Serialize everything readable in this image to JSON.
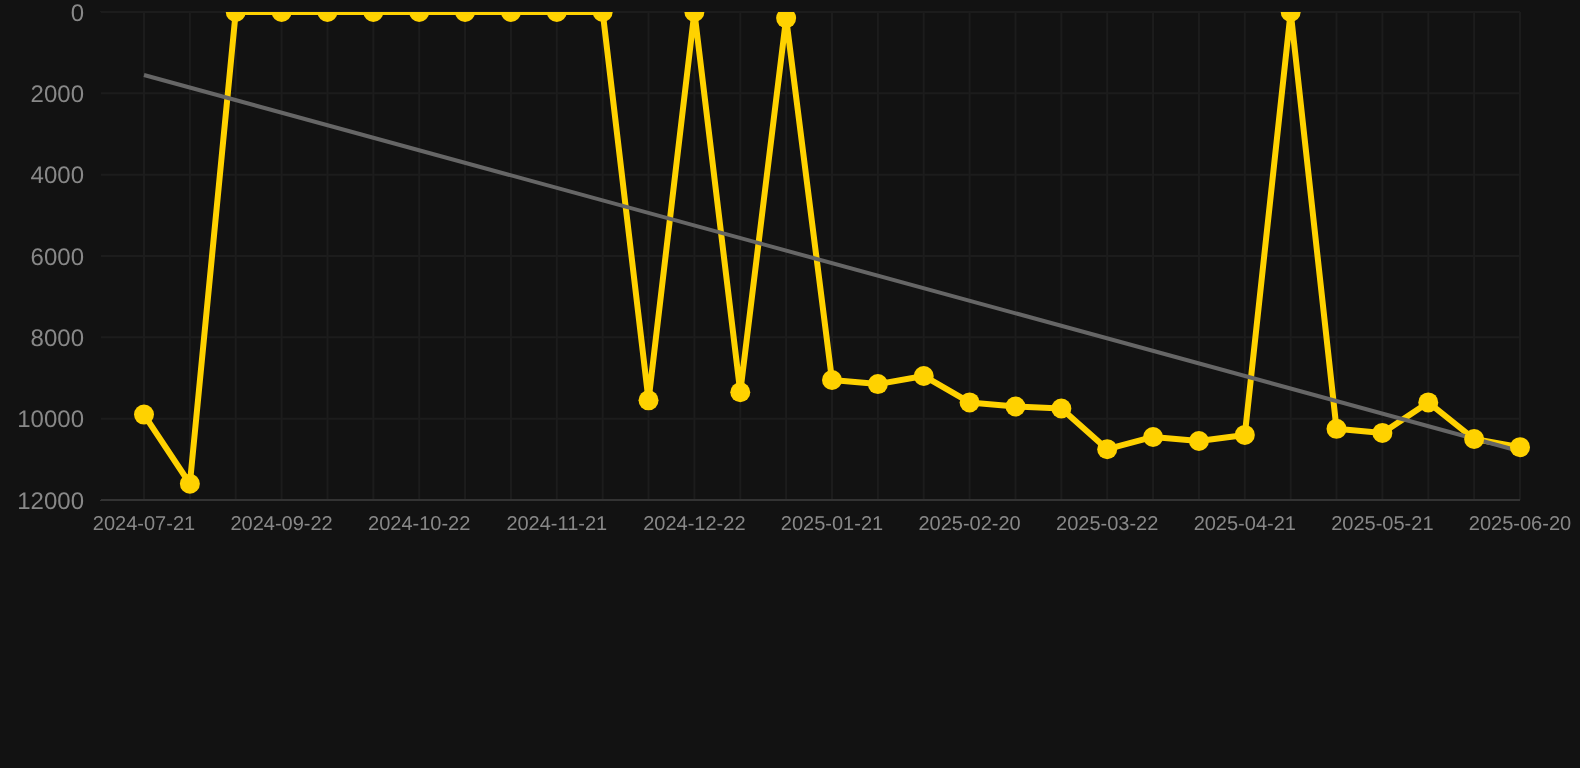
{
  "chart_data": {
    "type": "line",
    "categories": [
      "2024-07-21",
      null,
      null,
      "2024-09-22",
      null,
      null,
      "2024-10-22",
      null,
      null,
      "2024-11-21",
      null,
      null,
      "2024-12-22",
      null,
      null,
      "2025-01-21",
      null,
      null,
      "2025-02-20",
      null,
      null,
      "2025-03-22",
      null,
      null,
      "2025-04-21",
      null,
      null,
      "2025-05-21",
      null,
      null,
      "2025-06-20"
    ],
    "series": [
      {
        "color": "#ffd200",
        "values": [
          9900,
          11600,
          0,
          0,
          0,
          0,
          0,
          0,
          0,
          0,
          0,
          9550,
          0,
          9350,
          150,
          9050,
          9150,
          8950,
          9600,
          9700,
          9750,
          10750,
          10450,
          10550,
          10400,
          0,
          10250,
          10350,
          9600,
          10500,
          10700
        ]
      },
      {
        "type": "line",
        "color": "#666666",
        "marker": "none",
        "values": [
          1550,
          null,
          null,
          null,
          null,
          null,
          null,
          null,
          null,
          null,
          null,
          null,
          null,
          null,
          null,
          null,
          null,
          null,
          null,
          null,
          null,
          null,
          null,
          null,
          null,
          null,
          null,
          null,
          null,
          null,
          10800
        ]
      }
    ],
    "ylim": [
      12000,
      0
    ],
    "yticks": [
      0,
      2000,
      4000,
      6000,
      8000,
      10000,
      12000
    ],
    "grid": true,
    "marker": "circle",
    "line_style": "solid"
  }
}
